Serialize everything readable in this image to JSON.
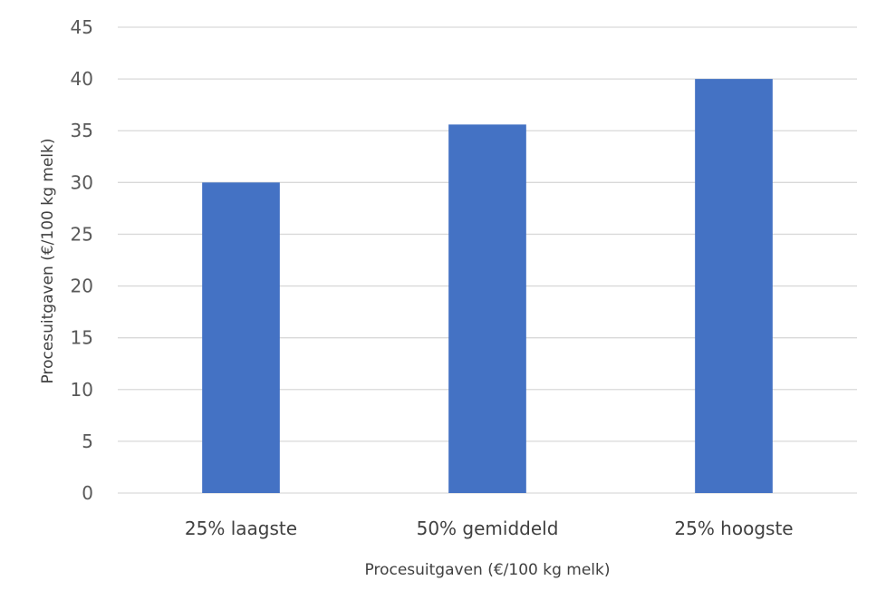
{
  "chart_data": {
    "type": "bar",
    "title": "",
    "categories": [
      "25% laagste",
      "50% gemiddeld",
      "25% hoogste"
    ],
    "series": [
      {
        "values": [
          30,
          35.6,
          40
        ],
        "color": "#4472c4"
      }
    ],
    "xlabel": "Procesuitgaven (€/100 kg melk)",
    "ylabel": "Procesuitgaven (€/100 kg melk)",
    "ylim": [
      0,
      45
    ],
    "yticks": [
      0,
      5,
      10,
      15,
      20,
      25,
      30,
      35,
      40,
      45
    ],
    "grid": "horizontal",
    "legend": "none"
  }
}
